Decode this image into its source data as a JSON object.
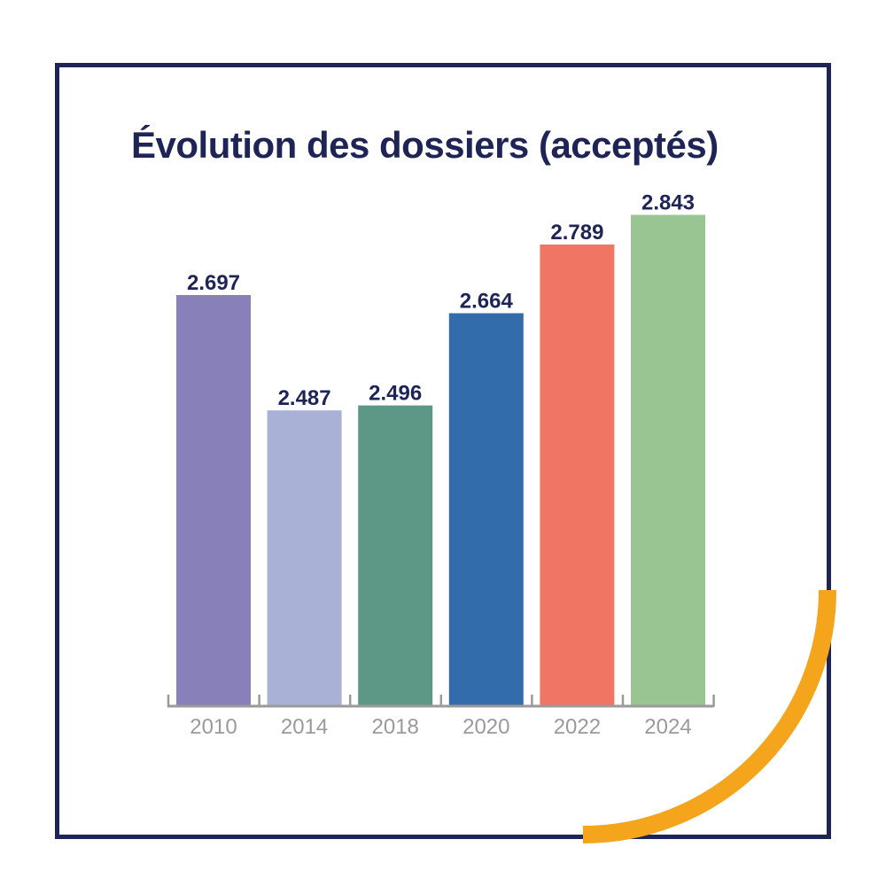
{
  "chart_data": {
    "type": "bar",
    "title": "Évolution des dossiers (acceptés)",
    "categories": [
      "2010",
      "2014",
      "2018",
      "2020",
      "2022",
      "2024"
    ],
    "values": [
      2.697,
      2.487,
      2.496,
      2.664,
      2.789,
      2.843
    ],
    "value_labels": [
      "2.697",
      "2.487",
      "2.496",
      "2.664",
      "2.789",
      "2.843"
    ],
    "bar_colors": [
      "#8780b9",
      "#a9b2d6",
      "#5d9887",
      "#336cab",
      "#f17563",
      "#99c592"
    ],
    "xlabel": "",
    "ylabel": "",
    "ylim": [
      0,
      3.0
    ],
    "grid": false,
    "legend": "none"
  },
  "colors": {
    "frame": "#1f2457",
    "title": "#1f2457",
    "axis": "#9a9a9a",
    "accent_arc": "#f4a51c"
  }
}
